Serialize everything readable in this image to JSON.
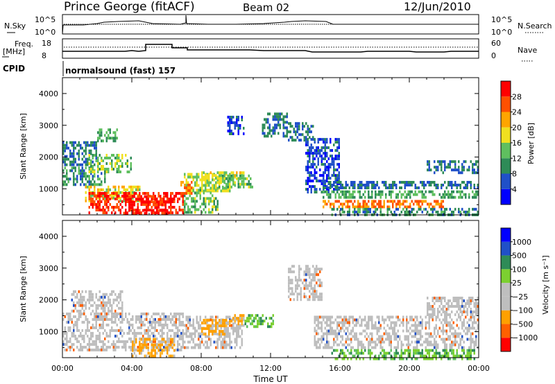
{
  "header": {
    "station": "Prince George (fitACF)",
    "beam": "Beam 02",
    "date": "12/Jun/2010"
  },
  "nsky_panel": {
    "left_label": "N.Sky",
    "right_label": "N.Search",
    "left_ticks": [
      "10^5",
      "10^0"
    ],
    "right_ticks": [
      "10^5",
      "10^0"
    ]
  },
  "freq_panel": {
    "left_label": "Freq.",
    "left_unit": "[MHz]",
    "right_label": "Nave",
    "left_ticks": [
      "18",
      "8"
    ],
    "right_ticks": [
      "60",
      "0"
    ]
  },
  "cpid": {
    "label": "CPID",
    "program": "normalsound (fast) 157"
  },
  "colors": {
    "power_scale": [
      "#0000ff",
      "#2050c8",
      "#2e8b57",
      "#5fbf5f",
      "#f0e020",
      "#ffa500",
      "#ff5000",
      "#ff0000"
    ],
    "velocity_scale": [
      "#ff0000",
      "#ff6000",
      "#ffa000",
      "#bebebe",
      "#bebebe",
      "#7cd030",
      "#2e8b57",
      "#2050c8",
      "#0000ff"
    ],
    "ground_scatter": "#bebebe"
  },
  "chart_data": [
    {
      "type": "heatmap",
      "name": "power",
      "xlabel": "",
      "ylabel": "Slant Range [km]",
      "x_ticks": [
        "00:00",
        "04:00",
        "08:00",
        "12:00",
        "16:00",
        "20:00",
        "00:00"
      ],
      "y_ticks": [
        1000,
        2000,
        3000,
        4000
      ],
      "xlim": [
        0,
        24
      ],
      "ylim": [
        180,
        4500
      ],
      "colorbar": {
        "label": "Power [dB]",
        "ticks": [
          4,
          8,
          12,
          16,
          20,
          24,
          28
        ],
        "range": [
          0,
          32
        ]
      },
      "echo_regions": [
        {
          "t0": 0.0,
          "t1": 2.5,
          "r0": 1100,
          "r1": 1700,
          "level": 10
        },
        {
          "t0": 0.0,
          "t1": 2.0,
          "r0": 1800,
          "r1": 2500,
          "level": 8
        },
        {
          "t0": 1.5,
          "t1": 4.0,
          "r0": 1500,
          "r1": 2100,
          "level": 14
        },
        {
          "t0": 1.2,
          "t1": 4.5,
          "r0": 650,
          "r1": 1100,
          "level": 18
        },
        {
          "t0": 1.5,
          "t1": 7.0,
          "r0": 250,
          "r1": 900,
          "level": 28
        },
        {
          "t0": 3.5,
          "t1": 6.2,
          "r0": 200,
          "r1": 800,
          "level": 30
        },
        {
          "t0": 2.0,
          "t1": 3.2,
          "r0": 2500,
          "r1": 2900,
          "level": 12
        },
        {
          "t0": 7.0,
          "t1": 10.0,
          "r0": 900,
          "r1": 1500,
          "level": 16
        },
        {
          "t0": 8.0,
          "t1": 10.5,
          "r0": 1300,
          "r1": 1550,
          "level": 18
        },
        {
          "t0": 9.0,
          "t1": 11.0,
          "r0": 1050,
          "r1": 1450,
          "level": 14
        },
        {
          "t0": 7.0,
          "t1": 9.0,
          "r0": 300,
          "r1": 1000,
          "level": 14
        },
        {
          "t0": 6.8,
          "t1": 7.5,
          "r0": 900,
          "r1": 1250,
          "level": 24
        },
        {
          "t0": 9.5,
          "t1": 10.5,
          "r0": 2700,
          "r1": 3300,
          "level": 6
        },
        {
          "t0": 11.5,
          "t1": 13.0,
          "r0": 2700,
          "r1": 3400,
          "level": 8
        },
        {
          "t0": 13.0,
          "t1": 14.5,
          "r0": 2500,
          "r1": 3100,
          "level": 8
        },
        {
          "t0": 14.0,
          "t1": 16.0,
          "r0": 900,
          "r1": 2600,
          "level": 6
        },
        {
          "t0": 15.0,
          "t1": 24.0,
          "r0": 1050,
          "r1": 1250,
          "level": 8
        },
        {
          "t0": 15.0,
          "t1": 24.0,
          "r0": 700,
          "r1": 950,
          "level": 12
        },
        {
          "t0": 15.0,
          "t1": 22.0,
          "r0": 430,
          "r1": 650,
          "level": 24
        },
        {
          "t0": 21.0,
          "t1": 24.0,
          "r0": 1500,
          "r1": 1900,
          "level": 8
        },
        {
          "t0": 15.5,
          "t1": 24.0,
          "r0": 200,
          "r1": 400,
          "level": 10
        }
      ]
    },
    {
      "type": "heatmap",
      "name": "velocity",
      "xlabel": "Time UT",
      "ylabel": "Slant Range [km]",
      "x_ticks": [
        "00:00",
        "04:00",
        "08:00",
        "12:00",
        "16:00",
        "20:00",
        "00:00"
      ],
      "y_ticks": [
        1000,
        2000,
        3000,
        4000
      ],
      "xlim": [
        0,
        24
      ],
      "ylim": [
        180,
        4500
      ],
      "colorbar": {
        "label": "Velocity [m s⁻¹]",
        "ticks": [
          "1000",
          "500",
          "100",
          "25",
          "−25",
          "−100",
          "−500",
          "−1000"
        ]
      },
      "echo_regions": [
        {
          "t0": 0.0,
          "t1": 7.0,
          "r0": 400,
          "r1": 1600,
          "kind": "ground"
        },
        {
          "t0": 0.5,
          "t1": 3.5,
          "r0": 1600,
          "r1": 2300,
          "kind": "ground"
        },
        {
          "t0": 7.0,
          "t1": 10.5,
          "r0": 500,
          "r1": 1500,
          "kind": "ground"
        },
        {
          "t0": 8.0,
          "t1": 9.5,
          "r0": 900,
          "r1": 1400,
          "kind": "negative"
        },
        {
          "t0": 4.0,
          "t1": 6.5,
          "r0": 250,
          "r1": 800,
          "kind": "negative"
        },
        {
          "t0": 10.5,
          "t1": 12.2,
          "r0": 1150,
          "r1": 1550,
          "kind": "positive"
        },
        {
          "t0": 9.5,
          "t1": 10.5,
          "r0": 1250,
          "r1": 1550,
          "kind": "negative"
        },
        {
          "t0": 13.0,
          "t1": 15.0,
          "r0": 2000,
          "r1": 3100,
          "kind": "ground"
        },
        {
          "t0": 14.5,
          "t1": 24.0,
          "r0": 500,
          "r1": 1500,
          "kind": "ground"
        },
        {
          "t0": 15.5,
          "t1": 24.0,
          "r0": 180,
          "r1": 450,
          "kind": "positive"
        },
        {
          "t0": 21.0,
          "t1": 24.0,
          "r0": 1500,
          "r1": 2100,
          "kind": "ground"
        }
      ]
    }
  ]
}
